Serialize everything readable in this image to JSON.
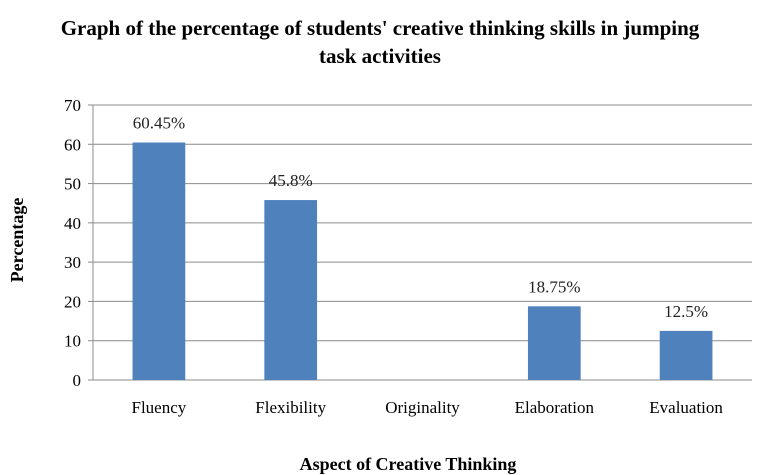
{
  "chart_data": {
    "type": "bar",
    "title": "Graph of the percentage of students' creative thinking skills in jumping task activities",
    "xlabel": "Aspect of Creative Thinking",
    "ylabel": "Percentage",
    "categories": [
      "Fluency",
      "Flexibility",
      "Originality",
      "Elaboration",
      "Evaluation"
    ],
    "values": [
      60.45,
      45.8,
      0,
      18.75,
      12.5
    ],
    "data_labels": [
      "60.45%",
      "45.8%",
      "",
      "18.75%",
      "12.5%"
    ],
    "ylim": [
      0,
      70
    ],
    "yticks": [
      0,
      10,
      20,
      30,
      40,
      50,
      60,
      70
    ],
    "grid": true,
    "legend": "none",
    "bar_color": "#4f81bd"
  }
}
